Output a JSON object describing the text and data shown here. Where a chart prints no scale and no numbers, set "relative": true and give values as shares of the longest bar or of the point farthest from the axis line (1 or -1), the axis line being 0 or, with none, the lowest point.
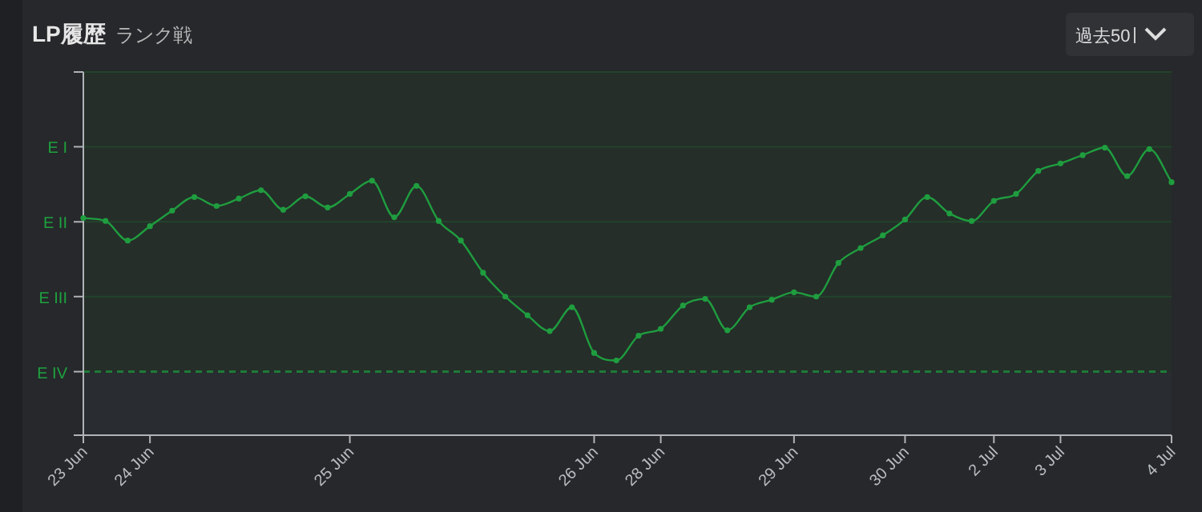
{
  "chart_data": {
    "type": "line",
    "title": "LP履歴",
    "subtitle": "ランク戦",
    "annotations": [
      "過去50"
    ],
    "categories": [
      "23 Jun",
      null,
      null,
      "24 Jun",
      null,
      null,
      null,
      null,
      null,
      null,
      null,
      null,
      "25 Jun",
      null,
      null,
      null,
      null,
      null,
      null,
      null,
      null,
      null,
      null,
      "26 Jun",
      null,
      null,
      "28 Jun",
      null,
      null,
      null,
      null,
      null,
      "29 Jun",
      null,
      null,
      null,
      null,
      "30 Jun",
      null,
      null,
      null,
      "2 Jul",
      null,
      null,
      "3 Jul",
      null,
      null,
      null,
      null,
      "4 Jul"
    ],
    "relative": true,
    "series": [
      {
        "color": "#1f9d3f",
        "values": [
          0.755,
          0.745,
          0.677,
          0.727,
          0.781,
          0.828,
          0.797,
          0.823,
          0.852,
          0.784,
          0.831,
          0.792,
          0.839,
          0.885,
          0.758,
          0.867,
          0.745,
          0.677,
          0.565,
          0.482,
          0.417,
          0.362,
          0.445,
          0.286,
          0.26,
          0.346,
          0.37,
          0.451,
          0.474,
          0.365,
          0.445,
          0.471,
          0.497,
          0.482,
          0.599,
          0.651,
          0.695,
          0.75,
          0.828,
          0.771,
          0.745,
          0.815,
          0.839,
          0.919,
          0.945,
          0.974,
          1,
          0.901,
          0.995,
          0.88
        ]
      }
    ],
    "marker": "circle",
    "line_style": "solid",
    "bands": [
      {
        "axis": "y",
        "from": 0.221,
        "to": 1.263,
        "color": "#252e29"
      }
    ],
    "ref_lines": [
      {
        "axis": "y",
        "value": 0.221,
        "label": "E IV",
        "color": "#1f7a38",
        "line_style": "dashed"
      },
      {
        "axis": "y",
        "value": 0.482,
        "label": "E III",
        "color": "#23432c",
        "line_style": "solid"
      },
      {
        "axis": "y",
        "value": 0.742,
        "label": "E II",
        "color": "#23432c",
        "line_style": "solid"
      },
      {
        "axis": "y",
        "value": 1.003,
        "label": "E I",
        "color": "#23432c",
        "line_style": "solid"
      },
      {
        "axis": "y",
        "value": 1.263,
        "label": null,
        "color": "#23432c",
        "line_style": "solid"
      }
    ]
  }
}
